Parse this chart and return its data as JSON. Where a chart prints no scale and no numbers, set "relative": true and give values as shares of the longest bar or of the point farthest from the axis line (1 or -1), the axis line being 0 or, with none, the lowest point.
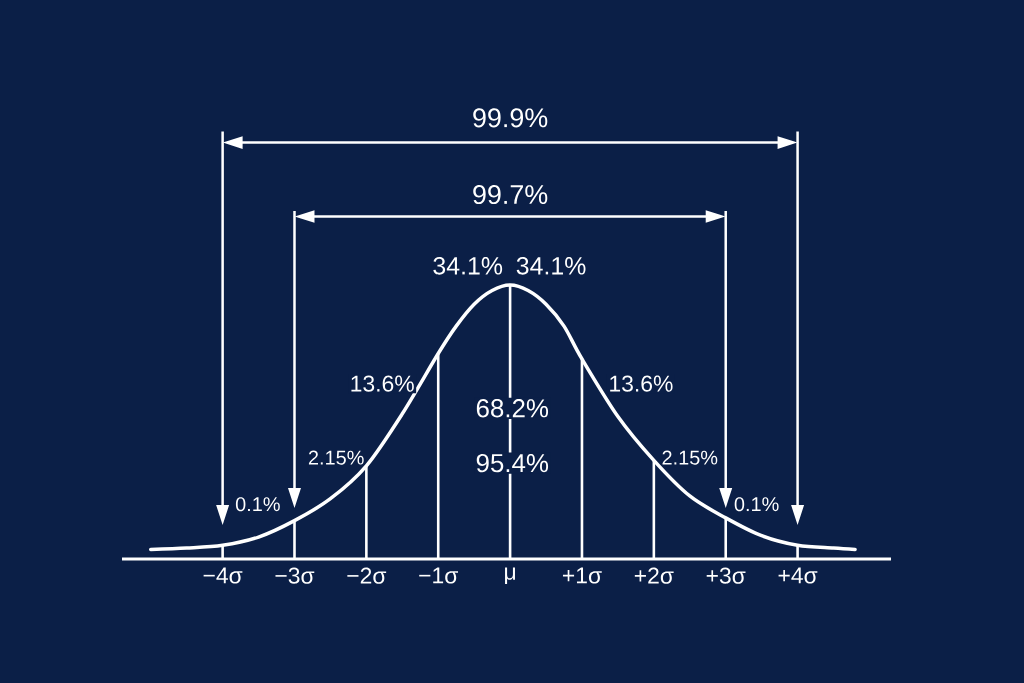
{
  "chart_data": {
    "type": "line",
    "relative": true,
    "xlim": [
      -5.4,
      5.3
    ],
    "xticks": [
      {
        "value": -4,
        "label": "−4σ"
      },
      {
        "value": -3,
        "label": "−3σ"
      },
      {
        "value": -2,
        "label": "−2σ"
      },
      {
        "value": -1,
        "label": "−1σ"
      },
      {
        "value": 0,
        "label": "μ"
      },
      {
        "value": 1,
        "label": "+1σ"
      },
      {
        "value": 2,
        "label": "+2σ"
      },
      {
        "value": 3,
        "label": "+3σ"
      },
      {
        "value": 4,
        "label": "+4σ"
      }
    ],
    "tick_labels": "x",
    "grid": "x",
    "series": [
      {
        "color": "#ffffff",
        "x": [
          -5.0,
          -4.5,
          -4.0,
          -3.5,
          -3.0,
          -2.5,
          -2.0,
          -1.5,
          -1.0,
          -0.75,
          -0.5,
          -0.25,
          0,
          0.25,
          0.5,
          0.75,
          1.0,
          1.5,
          2.0,
          2.5,
          3.0,
          3.5,
          4.0,
          4.5,
          4.8
        ],
        "values": [
          0.035,
          0.04,
          0.05,
          0.08,
          0.14,
          0.22,
          0.34,
          0.53,
          0.75,
          0.85,
          0.93,
          0.98,
          1.0,
          0.98,
          0.93,
          0.85,
          0.73,
          0.52,
          0.36,
          0.23,
          0.15,
          0.085,
          0.05,
          0.04,
          0.035
        ]
      }
    ],
    "annotations": [
      "99.9%",
      "99.7%",
      "34.1%",
      "34.1%",
      "13.6%",
      "13.6%",
      "68.2%",
      "95.4%",
      "2.15%",
      "2.15%",
      "0.1%",
      "0.1%"
    ]
  }
}
